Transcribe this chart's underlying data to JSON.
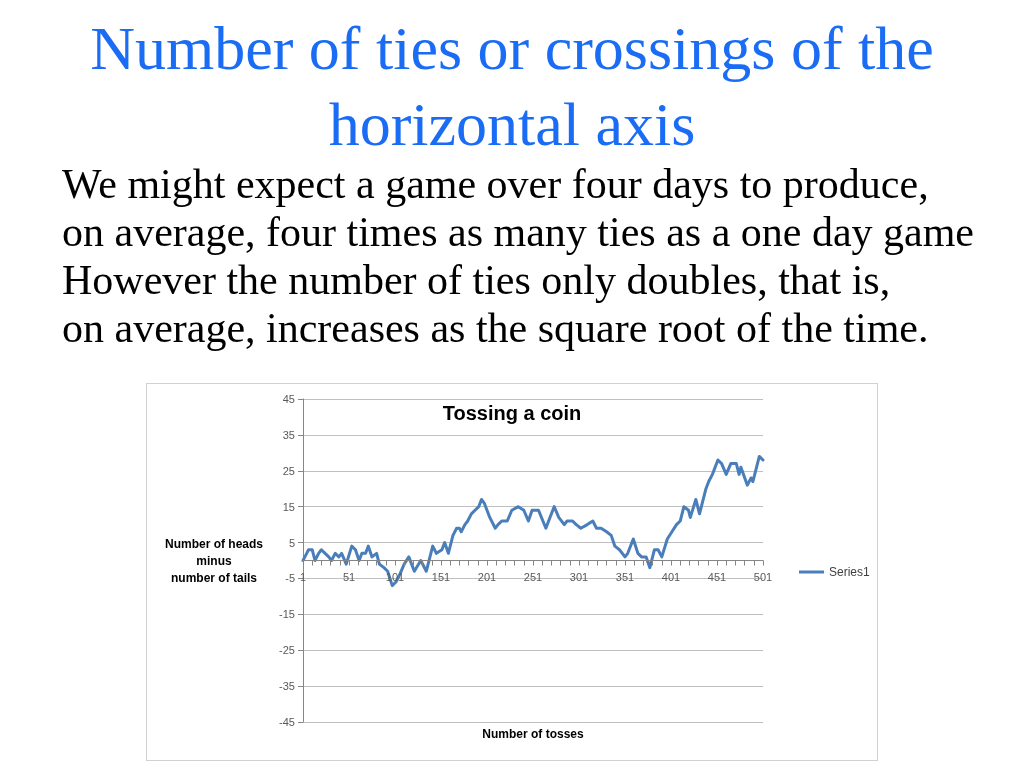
{
  "chart_data": {
    "type": "line",
    "title": "Tossing a coin",
    "xlabel": "Number of tosses",
    "ylabel": "Number of heads\nminus\nnumber of tails",
    "annotations": [
      "Number of ties or crossings of the horizontal axis",
      "We might expect a game over four days to produce,\non average, four times as many ties as a one day game",
      "However the number of ties only doubles, that is,\non average, increases as the square root of the time."
    ],
    "x": [
      1,
      5,
      7,
      11,
      14,
      18,
      21,
      25,
      29,
      32,
      36,
      40,
      43,
      48,
      54,
      58,
      62,
      65,
      69,
      72,
      76,
      81,
      84,
      89,
      93,
      98,
      102,
      106,
      111,
      116,
      122,
      129,
      135,
      139,
      142,
      146,
      152,
      155,
      159,
      164,
      168,
      171,
      173,
      177,
      180,
      184,
      188,
      192,
      195,
      198,
      201,
      204,
      210,
      213,
      217,
      223,
      228,
      235,
      241,
      246,
      250,
      257,
      265,
      268,
      274,
      279,
      285,
      288,
      294,
      298,
      303,
      310,
      316,
      320,
      325,
      331,
      336,
      340,
      345,
      351,
      354,
      360,
      365,
      369,
      374,
      378,
      383,
      387,
      391,
      397,
      402,
      407,
      411,
      415,
      420,
      422,
      428,
      432,
      439,
      442,
      446,
      452,
      456,
      461,
      466,
      472,
      475,
      477,
      484,
      488,
      490,
      497,
      501
    ],
    "series": [
      {
        "name": "Series1",
        "color": "#4a7ebb",
        "values": [
          0,
          2,
          3,
          3,
          0,
          2,
          3,
          2,
          1,
          0,
          2,
          1,
          2,
          -1,
          4,
          3,
          0,
          2,
          2,
          4,
          1,
          2,
          -1,
          -2,
          -3,
          -7,
          -6,
          -4,
          -1,
          1,
          -3,
          0,
          -3,
          1,
          4,
          2,
          3,
          5,
          2,
          7,
          9,
          9,
          8,
          10,
          11,
          13,
          14,
          15,
          17,
          16,
          14,
          12,
          9,
          10,
          11,
          11,
          14,
          15,
          14,
          11,
          14,
          14,
          9,
          11,
          15,
          12,
          10,
          11,
          11,
          10,
          9,
          10,
          11,
          9,
          9,
          8,
          7,
          4,
          3,
          1,
          2,
          6,
          2,
          1,
          1,
          -2,
          3,
          3,
          1,
          6,
          8,
          10,
          11,
          15,
          14,
          12,
          17,
          13,
          20,
          22,
          24,
          28,
          27,
          24,
          27,
          27,
          24,
          26,
          21,
          23,
          22,
          29,
          28
        ]
      }
    ],
    "xlim": [
      1,
      501
    ],
    "xticks": [
      1,
      {
        "value": 11,
        "label": null
      },
      {
        "value": 21,
        "label": null
      },
      {
        "value": 31,
        "label": null
      },
      {
        "value": 41,
        "label": null
      },
      51,
      {
        "value": 61,
        "label": null
      },
      {
        "value": 71,
        "label": null
      },
      {
        "value": 81,
        "label": null
      },
      {
        "value": 91,
        "label": null
      },
      101,
      {
        "value": 111,
        "label": null
      },
      {
        "value": 121,
        "label": null
      },
      {
        "value": 131,
        "label": null
      },
      {
        "value": 141,
        "label": null
      },
      151,
      {
        "value": 161,
        "label": null
      },
      {
        "value": 171,
        "label": null
      },
      {
        "value": 181,
        "label": null
      },
      {
        "value": 191,
        "label": null
      },
      201,
      {
        "value": 211,
        "label": null
      },
      {
        "value": 221,
        "label": null
      },
      {
        "value": 231,
        "label": null
      },
      {
        "value": 241,
        "label": null
      },
      251,
      {
        "value": 261,
        "label": null
      },
      {
        "value": 271,
        "label": null
      },
      {
        "value": 281,
        "label": null
      },
      {
        "value": 291,
        "label": null
      },
      301,
      {
        "value": 311,
        "label": null
      },
      {
        "value": 321,
        "label": null
      },
      {
        "value": 331,
        "label": null
      },
      {
        "value": 341,
        "label": null
      },
      351,
      {
        "value": 361,
        "label": null
      },
      {
        "value": 371,
        "label": null
      },
      {
        "value": 381,
        "label": null
      },
      {
        "value": 391,
        "label": null
      },
      401,
      {
        "value": 411,
        "label": null
      },
      {
        "value": 421,
        "label": null
      },
      {
        "value": 431,
        "label": null
      },
      {
        "value": 441,
        "label": null
      },
      451,
      {
        "value": 461,
        "label": null
      },
      {
        "value": 471,
        "label": null
      },
      {
        "value": 481,
        "label": null
      },
      {
        "value": 491,
        "label": null
      },
      501
    ],
    "ylim": [
      -45,
      45
    ],
    "yticks": [
      -45,
      -35,
      -25,
      -15,
      -5,
      5,
      15,
      25,
      35,
      45
    ],
    "grid": "y",
    "legend": "right",
    "marker": "none",
    "line_style": "solid"
  }
}
